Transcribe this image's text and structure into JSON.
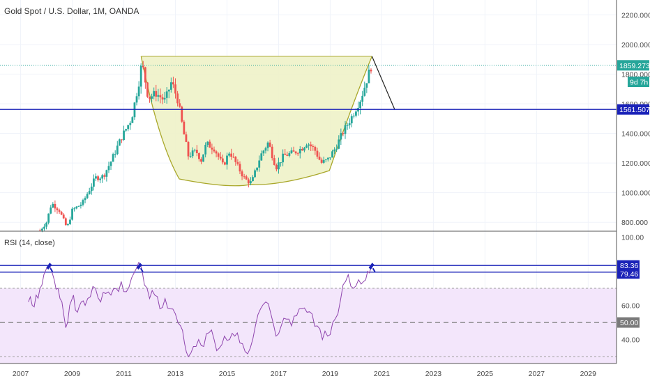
{
  "header": {
    "title": "Gold Spot / U.S. Dollar, 1M, OANDA",
    "rsi_label": "RSI (14, close)"
  },
  "colors": {
    "up": "#26a69a",
    "down": "#ef5350",
    "level_line": "#1a22b8",
    "current_price_line": "#26a69a",
    "cup_fill": "#eef2c8",
    "cup_stroke": "#a9a72a",
    "rsi_line": "#8e44ad",
    "rsi_band": "#f3e6fb"
  },
  "price_axis": {
    "ticks": [
      "2200.000",
      "2000.000",
      "1800.000",
      "1600.000",
      "1400.000",
      "1200.000",
      "1000.000",
      "800.000"
    ],
    "current_price_badge": "1859.273",
    "countdown_badge": "9d 7h",
    "support_badge": "1561.507"
  },
  "rsi_axis": {
    "ticks": [
      "100.00",
      "60.00",
      "40.00"
    ],
    "mid_badge": "50.00",
    "upper_badge": "83.36",
    "lower_badge": "79.46"
  },
  "time_axis": {
    "ticks": [
      "2007",
      "2009",
      "2011",
      "2013",
      "2015",
      "2017",
      "2019",
      "2021",
      "2023",
      "2025",
      "2027",
      "2029"
    ]
  },
  "chart_data": [
    {
      "type": "candlestick",
      "title": "Gold Spot / U.S. Dollar, 1M, OANDA",
      "ylim": [
        740,
        2300
      ],
      "xlim": [
        2006.2,
        2030.1
      ],
      "current_price": 1859.273,
      "horizontal_level": 1561.507,
      "price_path": [
        [
          2007.75,
          745
        ],
        [
          2008.0,
          800
        ],
        [
          2008.2,
          930
        ],
        [
          2008.5,
          880
        ],
        [
          2008.8,
          760
        ],
        [
          2009.0,
          880
        ],
        [
          2009.4,
          930
        ],
        [
          2009.9,
          1100
        ],
        [
          2010.2,
          1110
        ],
        [
          2010.5,
          1210
        ],
        [
          2010.9,
          1370
        ],
        [
          2011.3,
          1500
        ],
        [
          2011.6,
          1760
        ],
        [
          2011.7,
          1880
        ],
        [
          2011.95,
          1640
        ],
        [
          2012.25,
          1670
        ],
        [
          2012.6,
          1620
        ],
        [
          2012.85,
          1750
        ],
        [
          2013.1,
          1620
        ],
        [
          2013.3,
          1420
        ],
        [
          2013.5,
          1250
        ],
        [
          2013.8,
          1280
        ],
        [
          2014.0,
          1220
        ],
        [
          2014.2,
          1330
        ],
        [
          2014.5,
          1300
        ],
        [
          2014.85,
          1180
        ],
        [
          2015.1,
          1280
        ],
        [
          2015.4,
          1180
        ],
        [
          2015.7,
          1090
        ],
        [
          2015.95,
          1065
        ],
        [
          2016.3,
          1250
        ],
        [
          2016.6,
          1340
        ],
        [
          2016.9,
          1170
        ],
        [
          2017.2,
          1250
        ],
        [
          2017.6,
          1270
        ],
        [
          2017.9,
          1300
        ],
        [
          2018.1,
          1340
        ],
        [
          2018.4,
          1290
        ],
        [
          2018.65,
          1200
        ],
        [
          2018.9,
          1220
        ],
        [
          2019.2,
          1300
        ],
        [
          2019.5,
          1410
        ],
        [
          2019.8,
          1500
        ],
        [
          2020.0,
          1570
        ],
        [
          2020.2,
          1640
        ],
        [
          2020.45,
          1780
        ],
        [
          2020.6,
          1859
        ]
      ],
      "cup_pattern": {
        "left_rim": [
          2011.67,
          1920
        ],
        "bottom": [
          2015.9,
          1055
        ],
        "right_rim": [
          2020.62,
          1920
        ],
        "projection_end": [
          2021.5,
          1561.5
        ]
      }
    },
    {
      "type": "line",
      "title": "RSI (14, close)",
      "ylim": [
        26,
        103
      ],
      "levels": [
        83.36,
        79.46,
        70,
        50,
        30
      ],
      "values": [
        [
          2007.3,
          62
        ],
        [
          2007.45,
          60
        ],
        [
          2007.6,
          66
        ],
        [
          2007.75,
          70
        ],
        [
          2007.9,
          78
        ],
        [
          2008.1,
          84
        ],
        [
          2008.3,
          75
        ],
        [
          2008.45,
          70
        ],
        [
          2008.6,
          62
        ],
        [
          2008.75,
          47
        ],
        [
          2008.9,
          60
        ],
        [
          2009.05,
          66
        ],
        [
          2009.2,
          56
        ],
        [
          2009.35,
          62
        ],
        [
          2009.5,
          60
        ],
        [
          2009.7,
          65
        ],
        [
          2009.9,
          70
        ],
        [
          2010.1,
          62
        ],
        [
          2010.3,
          67
        ],
        [
          2010.5,
          66
        ],
        [
          2010.7,
          70
        ],
        [
          2010.9,
          74
        ],
        [
          2011.1,
          68
        ],
        [
          2011.3,
          76
        ],
        [
          2011.5,
          82
        ],
        [
          2011.65,
          84
        ],
        [
          2011.8,
          72
        ],
        [
          2012.0,
          64
        ],
        [
          2012.2,
          66
        ],
        [
          2012.4,
          58
        ],
        [
          2012.6,
          64
        ],
        [
          2012.8,
          58
        ],
        [
          2013.0,
          55
        ],
        [
          2013.2,
          48
        ],
        [
          2013.35,
          38
        ],
        [
          2013.5,
          30
        ],
        [
          2013.7,
          36
        ],
        [
          2013.9,
          40
        ],
        [
          2014.1,
          36
        ],
        [
          2014.3,
          44
        ],
        [
          2014.5,
          40
        ],
        [
          2014.7,
          35
        ],
        [
          2014.9,
          42
        ],
        [
          2015.1,
          40
        ],
        [
          2015.3,
          42
        ],
        [
          2015.5,
          38
        ],
        [
          2015.7,
          33
        ],
        [
          2015.9,
          35
        ],
        [
          2016.1,
          48
        ],
        [
          2016.3,
          58
        ],
        [
          2016.5,
          62
        ],
        [
          2016.7,
          55
        ],
        [
          2016.9,
          42
        ],
        [
          2017.1,
          48
        ],
        [
          2017.3,
          52
        ],
        [
          2017.5,
          48
        ],
        [
          2017.7,
          54
        ],
        [
          2017.9,
          58
        ],
        [
          2018.1,
          56
        ],
        [
          2018.3,
          55
        ],
        [
          2018.5,
          48
        ],
        [
          2018.7,
          40
        ],
        [
          2018.9,
          42
        ],
        [
          2019.1,
          50
        ],
        [
          2019.3,
          55
        ],
        [
          2019.5,
          72
        ],
        [
          2019.7,
          78
        ],
        [
          2019.9,
          70
        ],
        [
          2020.1,
          75
        ],
        [
          2020.3,
          74
        ],
        [
          2020.45,
          80
        ],
        [
          2020.6,
          83.36
        ]
      ]
    }
  ]
}
